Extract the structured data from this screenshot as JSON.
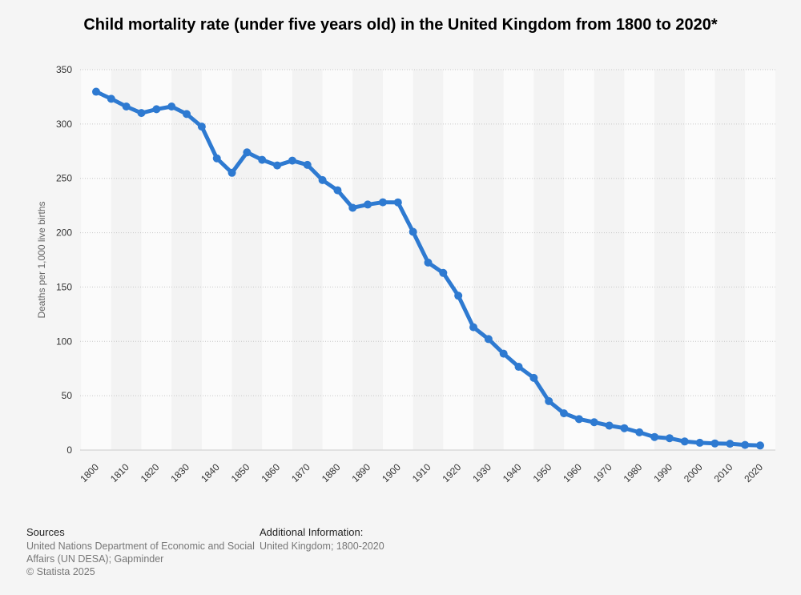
{
  "chart_data": {
    "type": "line",
    "title": "Child mortality rate (under five years old) in the United Kingdom from 1800 to 2020*",
    "ylabel": "Deaths per 1,000 live births",
    "xlabel": "",
    "ylim": [
      0,
      350
    ],
    "xlim": [
      1800,
      2020
    ],
    "yticks": [
      "0",
      "50",
      "100",
      "150",
      "200",
      "250",
      "300",
      "350"
    ],
    "xticks": [
      "1800",
      "1810",
      "1820",
      "1830",
      "1840",
      "1850",
      "1860",
      "1870",
      "1880",
      "1890",
      "1900",
      "1910",
      "1920",
      "1930",
      "1940",
      "1950",
      "1960",
      "1970",
      "1980",
      "1990",
      "2000",
      "2010",
      "2020"
    ],
    "grid": true,
    "legend": "none",
    "series": [
      {
        "color": "#2e7ad1",
        "x": [
          1800,
          1805,
          1810,
          1815,
          1820,
          1825,
          1830,
          1835,
          1840,
          1845,
          1850,
          1855,
          1860,
          1865,
          1870,
          1875,
          1880,
          1885,
          1890,
          1895,
          1900,
          1905,
          1910,
          1915,
          1920,
          1925,
          1930,
          1935,
          1940,
          1945,
          1950,
          1955,
          1960,
          1965,
          1970,
          1975,
          1980,
          1985,
          1990,
          1995,
          2000,
          2005,
          2010,
          2015,
          2020
        ],
        "values": [
          329.7,
          323.2,
          316.1,
          310.1,
          313.6,
          316.1,
          309.2,
          297.6,
          268.4,
          255.1,
          273.9,
          267.0,
          261.9,
          266.3,
          262.4,
          248.4,
          239.0,
          222.9,
          225.9,
          228.0,
          227.9,
          200.8,
          172.5,
          163.0,
          142.0,
          113.0,
          102.1,
          88.7,
          76.6,
          66.4,
          45.0,
          33.8,
          28.5,
          25.6,
          22.5,
          20.1,
          16.3,
          12.0,
          10.9,
          7.9,
          6.7,
          6.1,
          5.8,
          4.7,
          4.2
        ]
      }
    ]
  },
  "footer": {
    "sources_heading": "Sources",
    "sources_lines": [
      "United Nations Department of Economic and Social",
      "Affairs (UN DESA); Gapminder",
      "© Statista 2025"
    ],
    "additional_heading": "Additional Information:",
    "additional_lines": [
      "United Kingdom; 1800-2020"
    ]
  }
}
